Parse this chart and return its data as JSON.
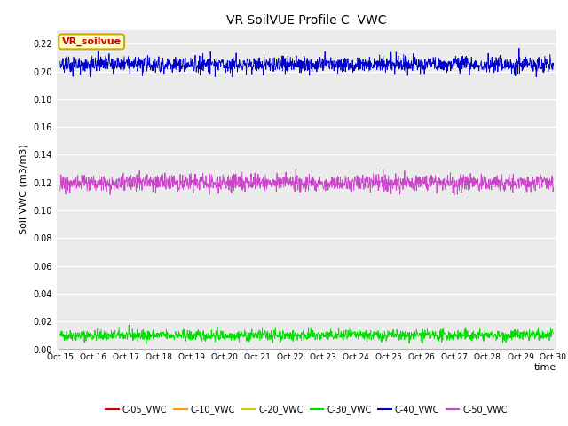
{
  "title": "VR SoilVUE Profile C  VWC",
  "ylabel": "Soil VWC (m3/m3)",
  "xlabel": "time",
  "ylim": [
    0.0,
    0.23
  ],
  "yticks": [
    0.0,
    0.02,
    0.04,
    0.06,
    0.08,
    0.1,
    0.12,
    0.14,
    0.16,
    0.18,
    0.2,
    0.22
  ],
  "x_tick_labels": [
    "Oct 15",
    "Oct 16",
    "Oct 17",
    "Oct 18",
    "Oct 19",
    "Oct 20",
    "Oct 21",
    "Oct 22",
    "Oct 23",
    "Oct 24",
    "Oct 25",
    "Oct 26",
    "Oct 27",
    "Oct 28",
    "Oct 29",
    "Oct 30"
  ],
  "n_points": 1500,
  "series": {
    "C-05_VWC": {
      "mean": 0.0,
      "std": 0.0,
      "color": "#cc0000"
    },
    "C-10_VWC": {
      "mean": 0.0,
      "std": 0.0,
      "color": "#ff9900"
    },
    "C-20_VWC": {
      "mean": 0.0,
      "std": 0.0,
      "color": "#cccc00"
    },
    "C-30_VWC": {
      "mean": 0.01,
      "std": 0.002,
      "color": "#00dd00"
    },
    "C-40_VWC": {
      "mean": 0.205,
      "std": 0.003,
      "color": "#0000cc"
    },
    "C-50_VWC": {
      "mean": 0.12,
      "std": 0.003,
      "color": "#cc44cc"
    }
  },
  "annotation_text": "VR_soilvue",
  "annotation_color": "#cc0000",
  "annotation_bg": "#ffffcc",
  "annotation_border": "#ccaa00",
  "bg_color": "#ebebeb",
  "title_fontsize": 10,
  "legend_colors": {
    "C-05_VWC": "#cc0000",
    "C-10_VWC": "#ff9900",
    "C-20_VWC": "#cccc00",
    "C-30_VWC": "#00dd00",
    "C-40_VWC": "#0000cc",
    "C-50_VWC": "#cc44cc"
  }
}
